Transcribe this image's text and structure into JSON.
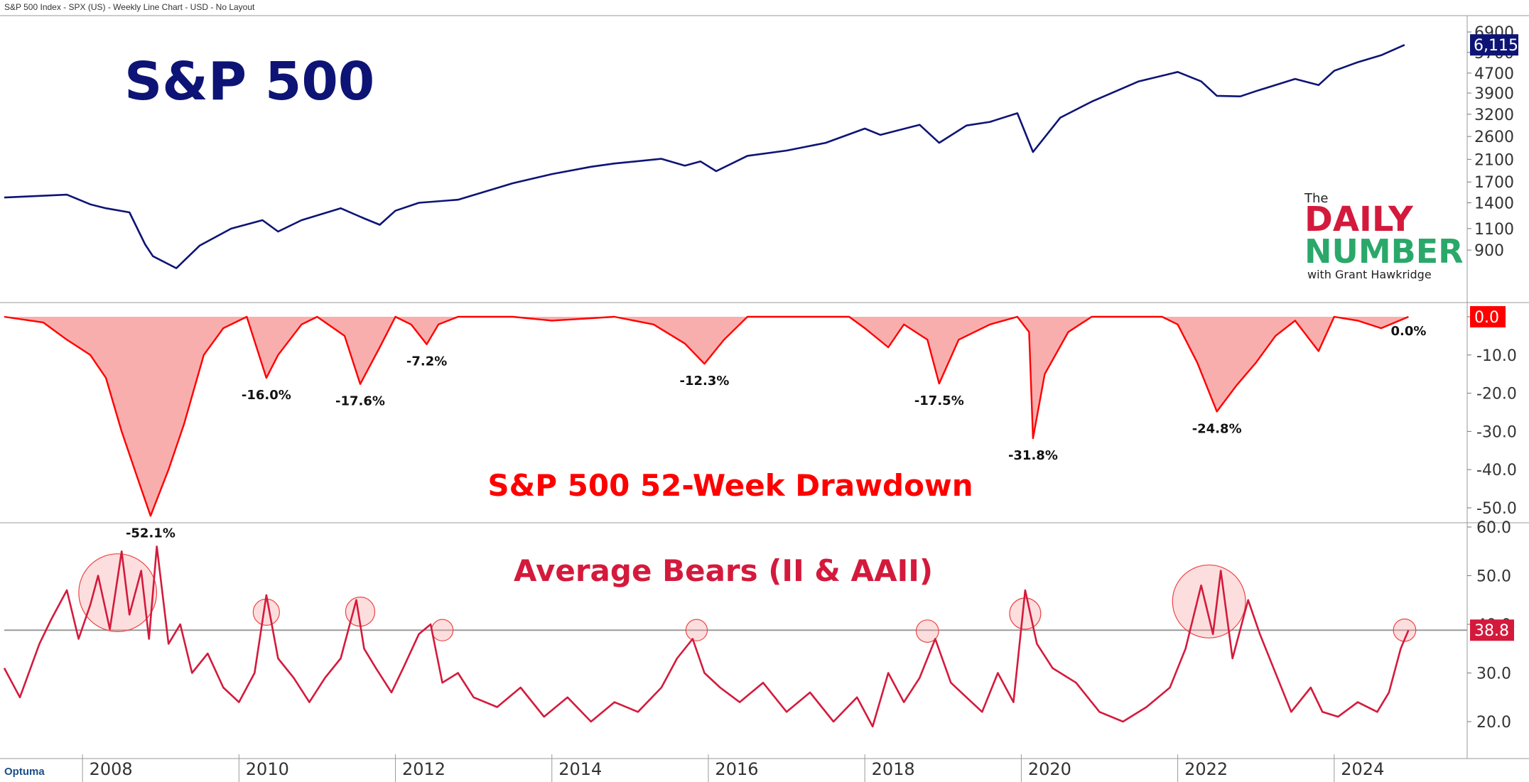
{
  "header": {
    "description": "S&P 500 Index - SPX (US) - Weekly Line Chart - USD - No Layout"
  },
  "footer": {
    "logo": "Optuma"
  },
  "branding": {
    "the": "The",
    "word1": "DAILY",
    "word2": "NUMBER",
    "byline": "with Grant Hawkridge"
  },
  "colors": {
    "navy": "#0d1475",
    "red": "#ff0000",
    "crimson": "#d41a3c",
    "fill": "#f8a0a0",
    "green": "#2aa86a",
    "grid": "#c8c8c8"
  },
  "chart_data": [
    {
      "type": "line",
      "title": "S&P 500",
      "scale": "log",
      "yticks": [
        900,
        1100,
        1400,
        1700,
        2100,
        2600,
        3200,
        3900,
        4700,
        5700,
        6900
      ],
      "last_value_label": "6,115",
      "series": [
        {
          "x": [
            2007.0,
            2007.4,
            2007.8,
            2008.1,
            2008.3,
            2008.6,
            2008.8,
            2008.9,
            2009.2,
            2009.5,
            2009.9,
            2010.3,
            2010.5,
            2010.8,
            2011.3,
            2011.6,
            2011.8,
            2012.0,
            2012.3,
            2012.8,
            2013.5,
            2014.0,
            2014.5,
            2014.8,
            2015.4,
            2015.7,
            2015.9,
            2016.1,
            2016.5,
            2017.0,
            2017.5,
            2018.0,
            2018.2,
            2018.7,
            2018.95,
            2019.3,
            2019.6,
            2019.95,
            2020.15,
            2020.5,
            2020.9,
            2021.5,
            2022.0,
            2022.3,
            2022.5,
            2022.8,
            2023.0,
            2023.5,
            2023.8,
            2024.0,
            2024.3,
            2024.6,
            2024.9
          ],
          "values": [
            1470,
            1490,
            1510,
            1380,
            1330,
            1280,
            950,
            850,
            760,
            940,
            1100,
            1190,
            1070,
            1190,
            1330,
            1210,
            1140,
            1300,
            1400,
            1440,
            1680,
            1830,
            1960,
            2020,
            2110,
            1980,
            2060,
            1880,
            2170,
            2280,
            2450,
            2800,
            2640,
            2900,
            2450,
            2880,
            2980,
            3230,
            2250,
            3100,
            3600,
            4350,
            4750,
            4350,
            3800,
            3780,
            3970,
            4450,
            4200,
            4800,
            5200,
            5550,
            6115
          ]
        }
      ]
    },
    {
      "type": "area",
      "title": "S&P 500 52-Week Drawdown",
      "yticks": [
        0.0,
        -10.0,
        -20.0,
        -30.0,
        -40.0,
        -50.0
      ],
      "last_value_label": "0.0",
      "annotations": [
        {
          "x": 2008.87,
          "value": -52.1,
          "label": "-52.1%"
        },
        {
          "x": 2010.35,
          "value": -16.0,
          "label": "-16.0%"
        },
        {
          "x": 2011.55,
          "value": -17.6,
          "label": "-17.6%"
        },
        {
          "x": 2012.4,
          "value": -7.2,
          "label": "-7.2%"
        },
        {
          "x": 2015.95,
          "value": -12.3,
          "label": "-12.3%"
        },
        {
          "x": 2018.95,
          "value": -17.5,
          "label": "-17.5%"
        },
        {
          "x": 2020.15,
          "value": -31.8,
          "label": "-31.8%"
        },
        {
          "x": 2022.5,
          "value": -24.8,
          "label": "-24.8%"
        },
        {
          "x": 2024.95,
          "value": 0.0,
          "label": "0.0%"
        }
      ],
      "series": [
        {
          "x": [
            2007.0,
            2007.5,
            2007.8,
            2008.1,
            2008.3,
            2008.5,
            2008.7,
            2008.87,
            2009.1,
            2009.3,
            2009.55,
            2009.8,
            2010.1,
            2010.35,
            2010.5,
            2010.8,
            2011.0,
            2011.35,
            2011.55,
            2011.8,
            2012.0,
            2012.2,
            2012.4,
            2012.55,
            2012.8,
            2013.5,
            2014.0,
            2014.8,
            2015.3,
            2015.7,
            2015.95,
            2016.2,
            2016.5,
            2017.0,
            2017.8,
            2018.0,
            2018.3,
            2018.5,
            2018.8,
            2018.95,
            2019.2,
            2019.6,
            2019.95,
            2020.1,
            2020.15,
            2020.3,
            2020.6,
            2020.9,
            2021.3,
            2021.8,
            2022.0,
            2022.25,
            2022.5,
            2022.75,
            2023.0,
            2023.25,
            2023.5,
            2023.8,
            2024.0,
            2024.3,
            2024.6,
            2024.95
          ],
          "values": [
            0.0,
            -1.5,
            -6.0,
            -10.0,
            -16.0,
            -30.0,
            -42.0,
            -52.1,
            -40.0,
            -28.0,
            -10.0,
            -3.0,
            0.0,
            -16.0,
            -10.0,
            -2.0,
            0.0,
            -5.0,
            -17.6,
            -8.0,
            0.0,
            -2.0,
            -7.2,
            -2.0,
            0.0,
            0.0,
            -1.0,
            0.0,
            -2.0,
            -7.0,
            -12.3,
            -6.0,
            0.0,
            0.0,
            0.0,
            -3.0,
            -8.0,
            -2.0,
            -6.0,
            -17.5,
            -6.0,
            -2.0,
            0.0,
            -4.0,
            -31.8,
            -15.0,
            -4.0,
            0.0,
            0.0,
            0.0,
            -2.0,
            -12.0,
            -24.8,
            -18.0,
            -12.0,
            -5.0,
            -1.0,
            -9.0,
            0.0,
            -1.0,
            -3.0,
            0.0
          ]
        }
      ]
    },
    {
      "type": "line",
      "title": "Average Bears (II & AAII)",
      "yticks": [
        20.0,
        30.0,
        40.0,
        50.0,
        60.0
      ],
      "reference_line": 38.8,
      "last_value_label": "38.8",
      "highlights": [
        {
          "x": 2008.45,
          "y": 46.5,
          "r": 8.0
        },
        {
          "x": 2010.35,
          "y": 42.5,
          "r": 2.7
        },
        {
          "x": 2011.55,
          "y": 42.6,
          "r": 3.0
        },
        {
          "x": 2012.6,
          "y": 38.8,
          "r": 2.2
        },
        {
          "x": 2015.85,
          "y": 38.8,
          "r": 2.2
        },
        {
          "x": 2018.8,
          "y": 38.6,
          "r": 2.3
        },
        {
          "x": 2020.05,
          "y": 42.2,
          "r": 3.2
        },
        {
          "x": 2022.4,
          "y": 44.7,
          "r": 7.5
        },
        {
          "x": 2024.9,
          "y": 38.8,
          "r": 2.3
        }
      ],
      "series": [
        {
          "x": [
            2007.0,
            2007.2,
            2007.45,
            2007.6,
            2007.8,
            2007.95,
            2008.1,
            2008.2,
            2008.35,
            2008.5,
            2008.6,
            2008.75,
            2008.85,
            2008.95,
            2009.1,
            2009.25,
            2009.4,
            2009.6,
            2009.8,
            2010.0,
            2010.2,
            2010.35,
            2010.5,
            2010.7,
            2010.9,
            2011.1,
            2011.3,
            2011.5,
            2011.6,
            2011.75,
            2011.95,
            2012.1,
            2012.3,
            2012.45,
            2012.6,
            2012.8,
            2013.0,
            2013.3,
            2013.6,
            2013.9,
            2014.2,
            2014.5,
            2014.8,
            2015.1,
            2015.4,
            2015.6,
            2015.8,
            2015.95,
            2016.15,
            2016.4,
            2016.7,
            2017.0,
            2017.3,
            2017.6,
            2017.9,
            2018.1,
            2018.3,
            2018.5,
            2018.7,
            2018.9,
            2019.1,
            2019.3,
            2019.5,
            2019.7,
            2019.9,
            2020.05,
            2020.2,
            2020.4,
            2020.7,
            2021.0,
            2021.3,
            2021.6,
            2021.9,
            2022.1,
            2022.3,
            2022.45,
            2022.55,
            2022.7,
            2022.9,
            2023.05,
            2023.2,
            2023.45,
            2023.7,
            2023.85,
            2024.05,
            2024.3,
            2024.55,
            2024.7,
            2024.85,
            2024.95
          ],
          "values": [
            31.0,
            25.0,
            36.0,
            41.0,
            47.0,
            37.0,
            44.0,
            50.0,
            39.0,
            55.0,
            42.0,
            51.0,
            37.0,
            56.0,
            36.0,
            40.0,
            30.0,
            34.0,
            27.0,
            24.0,
            30.0,
            46.0,
            33.0,
            29.0,
            24.0,
            29.0,
            33.0,
            45.0,
            35.0,
            31.0,
            26.0,
            31.0,
            38.0,
            40.0,
            28.0,
            30.0,
            25.0,
            23.0,
            27.0,
            21.0,
            25.0,
            20.0,
            24.0,
            22.0,
            27.0,
            33.0,
            37.0,
            30.0,
            27.0,
            24.0,
            28.0,
            22.0,
            26.0,
            20.0,
            25.0,
            19.0,
            30.0,
            24.0,
            29.0,
            37.0,
            28.0,
            25.0,
            22.0,
            30.0,
            24.0,
            47.0,
            36.0,
            31.0,
            28.0,
            22.0,
            20.0,
            23.0,
            27.0,
            35.0,
            48.0,
            38.0,
            51.0,
            33.0,
            45.0,
            38.0,
            32.0,
            22.0,
            27.0,
            22.0,
            21.0,
            24.0,
            22.0,
            26.0,
            35.0,
            38.8
          ]
        }
      ]
    }
  ],
  "x_axis": {
    "ticks": [
      2008,
      2010,
      2012,
      2014,
      2016,
      2018,
      2020,
      2022,
      2024
    ],
    "labels": [
      "2008",
      "2010",
      "2012",
      "2014",
      "2016",
      "2018",
      "2020",
      "2022",
      "2024"
    ]
  }
}
